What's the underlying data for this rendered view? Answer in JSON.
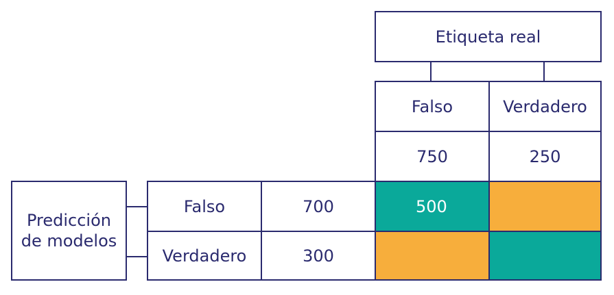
{
  "actual_label": {
    "title": "Etiqueta real",
    "columns": [
      {
        "label": "Falso",
        "total": "750"
      },
      {
        "label": "Verdadero",
        "total": "250"
      }
    ]
  },
  "model_prediction": {
    "title": "Predicción\nde modelos",
    "rows": [
      {
        "label": "Falso",
        "total": "700"
      },
      {
        "label": "Verdadero",
        "total": "300"
      }
    ]
  },
  "matrix": {
    "cells": [
      [
        "500",
        ""
      ],
      [
        "",
        ""
      ]
    ]
  },
  "colors": {
    "line": "#2a2a6e",
    "green": "#0aa99a",
    "orange": "#f7ae3c"
  }
}
